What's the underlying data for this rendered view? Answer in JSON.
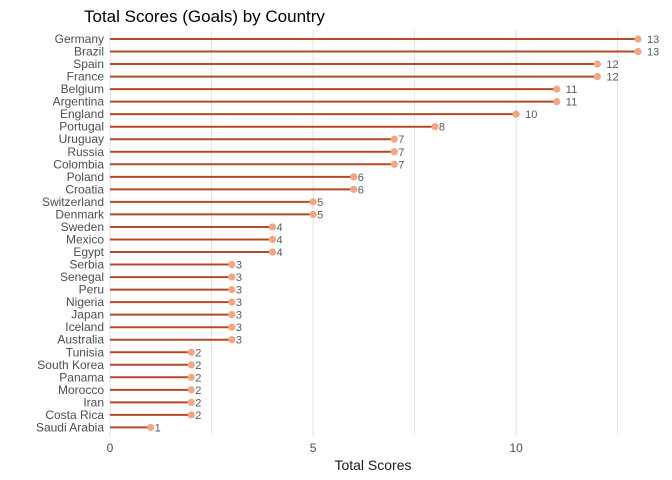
{
  "chart_data": {
    "type": "lollipop",
    "title": "Total Scores (Goals) by Country",
    "xlabel": "Total Scores",
    "ylabel": "",
    "xlim": [
      0,
      13
    ],
    "x_ticks": [
      0,
      5,
      10
    ],
    "grid": "vertical",
    "colors": {
      "stem": "#b5482a",
      "point": "#f4a582",
      "grid": "#d9d9d9"
    },
    "categories": [
      "Germany",
      "Brazil",
      "Spain",
      "France",
      "Belgium",
      "Argentina",
      "England",
      "Portugal",
      "Uruguay",
      "Russia",
      "Colombia",
      "Poland",
      "Croatia",
      "Switzerland",
      "Denmark",
      "Sweden",
      "Mexico",
      "Egypt",
      "Serbia",
      "Senegal",
      "Peru",
      "Nigeria",
      "Japan",
      "Iceland",
      "Australia",
      "Tunisia",
      "South Korea",
      "Panama",
      "Morocco",
      "Iran",
      "Costa Rica",
      "Saudi Arabia"
    ],
    "values": [
      13,
      13,
      12,
      12,
      11,
      11,
      10,
      8,
      7,
      7,
      7,
      6,
      6,
      5,
      5,
      4,
      4,
      4,
      3,
      3,
      3,
      3,
      3,
      3,
      3,
      2,
      2,
      2,
      2,
      2,
      2,
      1
    ]
  }
}
